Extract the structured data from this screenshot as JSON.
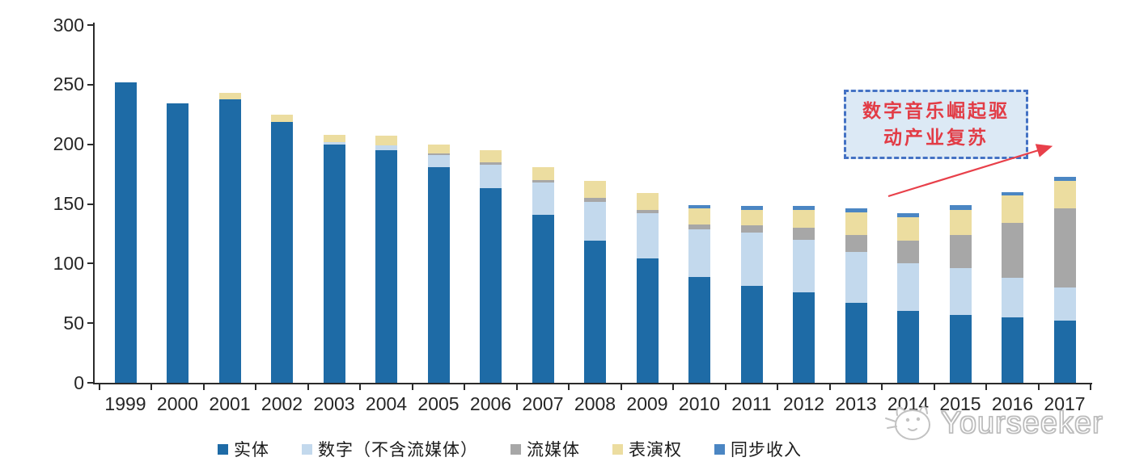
{
  "chart_data": {
    "type": "bar",
    "stacked": true,
    "title": "",
    "xlabel": "",
    "ylabel": "",
    "categories": [
      "1999",
      "2000",
      "2001",
      "2002",
      "2003",
      "2004",
      "2005",
      "2006",
      "2007",
      "2008",
      "2009",
      "2010",
      "2011",
      "2012",
      "2013",
      "2014",
      "2015",
      "2016",
      "2017"
    ],
    "series": [
      {
        "name": "实体",
        "color": "#1e6ba6",
        "values": [
          252,
          234,
          238,
          219,
          200,
          195,
          181,
          163,
          141,
          119,
          104,
          89,
          81,
          76,
          67,
          60,
          57,
          55,
          52
        ]
      },
      {
        "name": "数字（不含流媒体）",
        "color": "#c3d9ed",
        "values": [
          0,
          0,
          0,
          0,
          2,
          4,
          10,
          20,
          27,
          33,
          38,
          40,
          45,
          44,
          43,
          40,
          39,
          33,
          28
        ]
      },
      {
        "name": "流媒体",
        "color": "#a7a7a7",
        "values": [
          0,
          0,
          0,
          0,
          0,
          0,
          1,
          2,
          2,
          3,
          3,
          4,
          6,
          10,
          14,
          19,
          28,
          46,
          66
        ]
      },
      {
        "name": "表演权",
        "color": "#ecdda0",
        "values": [
          0,
          0,
          5,
          6,
          6,
          8,
          8,
          10,
          11,
          14,
          14,
          13,
          13,
          15,
          19,
          20,
          21,
          23,
          23
        ]
      },
      {
        "name": "同步收入",
        "color": "#4b86c3",
        "values": [
          0,
          0,
          0,
          0,
          0,
          0,
          0,
          0,
          0,
          0,
          0,
          3,
          3,
          3,
          3,
          3,
          4,
          3,
          4
        ]
      }
    ],
    "ylim": [
      0,
      300
    ],
    "yticks": [
      0,
      50,
      100,
      150,
      200,
      250,
      300
    ],
    "grid": false,
    "legend_position": "bottom"
  },
  "annotation": {
    "line1": "数字音乐崛起驱",
    "line2": "动产业复苏",
    "text_color": "#e23c46",
    "border_color": "#4472c4",
    "bg_color": "#dce9f5",
    "arrow_color": "#e8404a"
  },
  "watermark": {
    "text": "Yourseeker"
  }
}
